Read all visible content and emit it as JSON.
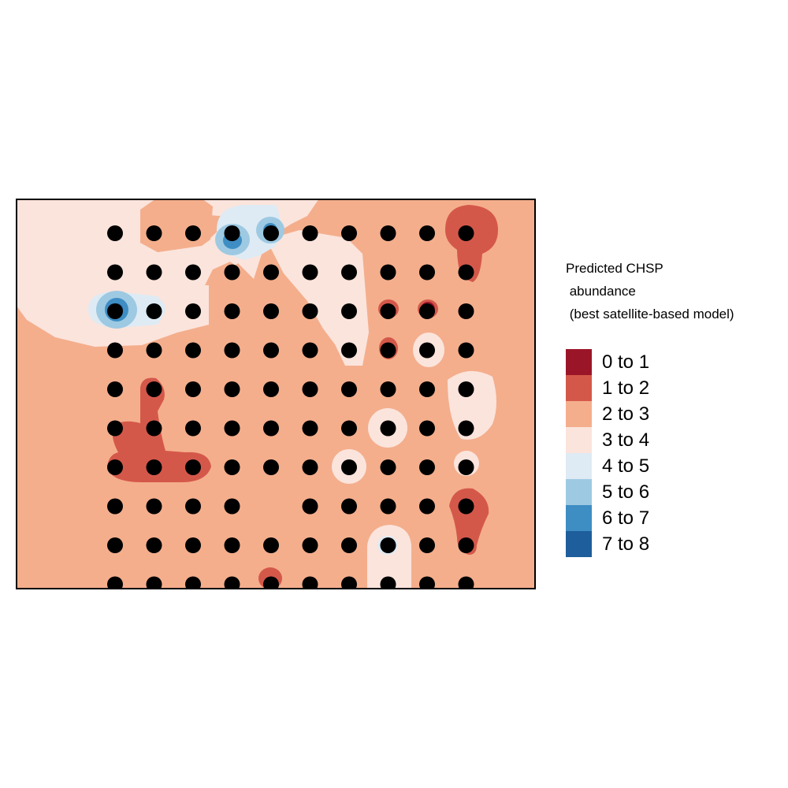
{
  "legend": {
    "title_line1": "Predicted CHSP",
    "title_line2": " abundance",
    "title_line3": " (best satellite-based model)",
    "classes": [
      {
        "label": "0 to 1",
        "color": "#9b1528"
      },
      {
        "label": "1 to 2",
        "color": "#d4584a"
      },
      {
        "label": "2 to 3",
        "color": "#f4ae8c"
      },
      {
        "label": "3 to 4",
        "color": "#fbe4dc"
      },
      {
        "label": "4 to 5",
        "color": "#deebf4"
      },
      {
        "label": "5 to 6",
        "color": "#9ec9e2"
      },
      {
        "label": "6 to 7",
        "color": "#3e8dc3"
      },
      {
        "label": "7 to 8",
        "color": "#1e5e9c"
      }
    ]
  },
  "map": {
    "background_class": "2 to 3",
    "point_color": "#000000",
    "survey_points": {
      "columns": 10,
      "rows": 10,
      "missing": [
        [
          7,
          4
        ]
      ]
    }
  }
}
